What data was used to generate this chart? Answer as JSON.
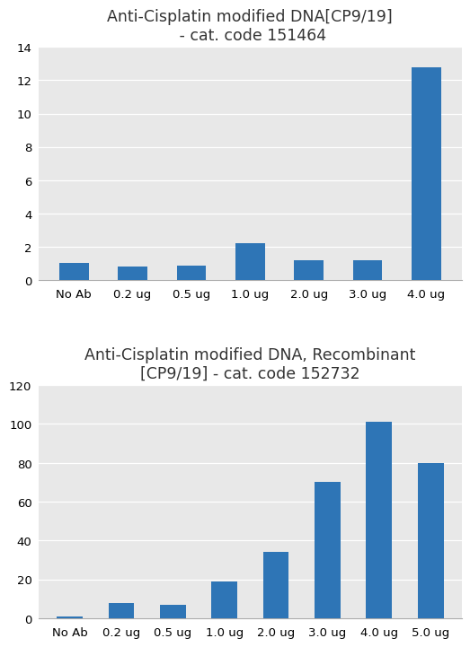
{
  "chart1": {
    "title": "Anti-Cisplatin modified DNA[CP9/19]\n - cat. code 151464",
    "categories": [
      "No Ab",
      "0.2 ug",
      "0.5 ug",
      "1.0 ug",
      "2.0 ug",
      "3.0 ug",
      "4.0 ug"
    ],
    "values": [
      1.05,
      0.8,
      0.85,
      2.2,
      1.2,
      1.2,
      12.8
    ],
    "ylim": [
      0,
      14
    ],
    "yticks": [
      0,
      2,
      4,
      6,
      8,
      10,
      12,
      14
    ],
    "bar_color": "#2E75B6"
  },
  "chart2": {
    "title": "Anti-Cisplatin modified DNA, Recombinant\n[CP9/19] - cat. code 152732",
    "categories": [
      "No Ab",
      "0.2 ug",
      "0.5 ug",
      "1.0 ug",
      "2.0 ug",
      "3.0 ug",
      "4.0 ug",
      "5.0 ug"
    ],
    "values": [
      1.0,
      8.0,
      7.0,
      19.0,
      34.0,
      70.0,
      101.0,
      80.0
    ],
    "ylim": [
      0,
      120
    ],
    "yticks": [
      0,
      20,
      40,
      60,
      80,
      100,
      120
    ],
    "bar_color": "#2E75B6"
  },
  "background_color": "#FFFFFF",
  "panel_bg": "#E8E8E8",
  "title_fontsize": 12.5,
  "tick_fontsize": 9.5,
  "bar_width": 0.5,
  "font_family": "DejaVu Sans"
}
